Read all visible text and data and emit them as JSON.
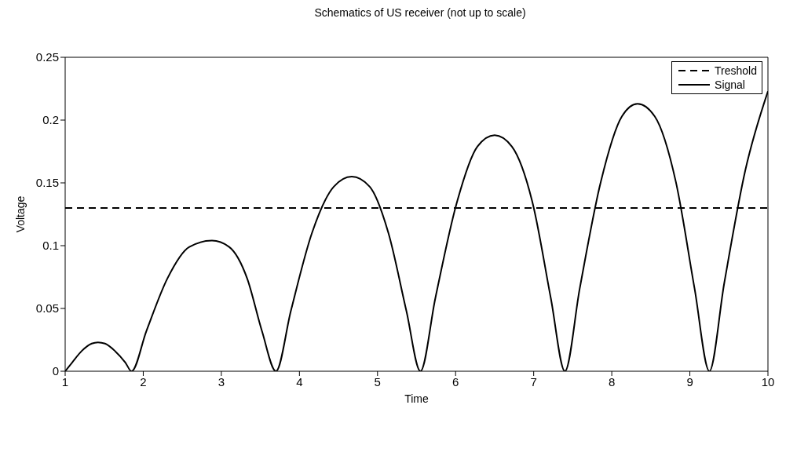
{
  "chart_data": {
    "type": "line",
    "title": "Schematics of US receiver (not up to scale)",
    "xlabel": "Time",
    "ylabel": "Voltage",
    "xlim": [
      1,
      10
    ],
    "xticks": [
      1,
      2,
      3,
      4,
      5,
      6,
      7,
      8,
      9,
      10
    ],
    "ylim": [
      0,
      0.25
    ],
    "yticks": [
      0,
      0.05,
      0.1,
      0.15,
      0.2,
      0.25
    ],
    "legend": "top right",
    "marker": "none",
    "series": [
      {
        "name": "Treshold",
        "color": "#000000",
        "line_style": "dashed",
        "x": [
          1,
          10
        ],
        "values": [
          0.13,
          0.13
        ]
      },
      {
        "name": "Signal",
        "color": "#000000",
        "line_style": "solid",
        "x": [
          1,
          1.09,
          1.21,
          1.34,
          1.42,
          1.51,
          1.64,
          1.77,
          1.85,
          2.04,
          2.31,
          2.59,
          2.88,
          3.1,
          3.33,
          3.52,
          3.7,
          3.89,
          4.16,
          4.44,
          4.67,
          4.9,
          5.14,
          5.37,
          5.55,
          5.74,
          6.01,
          6.28,
          6.5,
          6.72,
          6.99,
          7.22,
          7.4,
          7.59,
          7.86,
          8.13,
          8.33,
          8.55,
          8.82,
          9.06,
          9.25,
          9.44,
          9.71,
          10
        ],
        "values": [
          0,
          0.007,
          0.016,
          0.022,
          0.023,
          0.022,
          0.016,
          0.007,
          0,
          0.032,
          0.074,
          0.099,
          0.104,
          0.099,
          0.074,
          0.032,
          0,
          0.048,
          0.11,
          0.147,
          0.155,
          0.147,
          0.11,
          0.048,
          0,
          0.058,
          0.133,
          0.179,
          0.188,
          0.179,
          0.133,
          0.058,
          0,
          0.066,
          0.151,
          0.203,
          0.213,
          0.203,
          0.151,
          0.066,
          0,
          0.07,
          0.16,
          0.223
        ]
      }
    ]
  }
}
